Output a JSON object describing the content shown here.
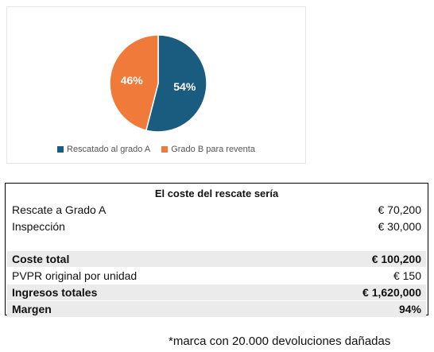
{
  "chart_data": {
    "type": "pie",
    "slices": [
      {
        "label": "Rescatado al grado A",
        "value": 54,
        "display": "54%",
        "color": "#1a5b80"
      },
      {
        "label": "Grado B para reventa",
        "value": 46,
        "display": "46%",
        "color": "#ef7a3a"
      }
    ],
    "legend_position": "bottom"
  },
  "table": {
    "title": "El coste del rescate sería",
    "rows": [
      {
        "label": "Rescate a Grado A",
        "value": "€ 70,200"
      },
      {
        "label": "Inspección",
        "value": "€ 30,000"
      },
      {
        "label": "Coste total",
        "value": "€ 100,200"
      },
      {
        "label": "PVPR original por unidad",
        "value": "€ 150"
      },
      {
        "label": "Ingresos totales",
        "value": "€ 1,620,000"
      },
      {
        "label": "Margen",
        "value": "94%"
      }
    ]
  },
  "footnote": "*marca con 20.000 devoluciones dañadas"
}
